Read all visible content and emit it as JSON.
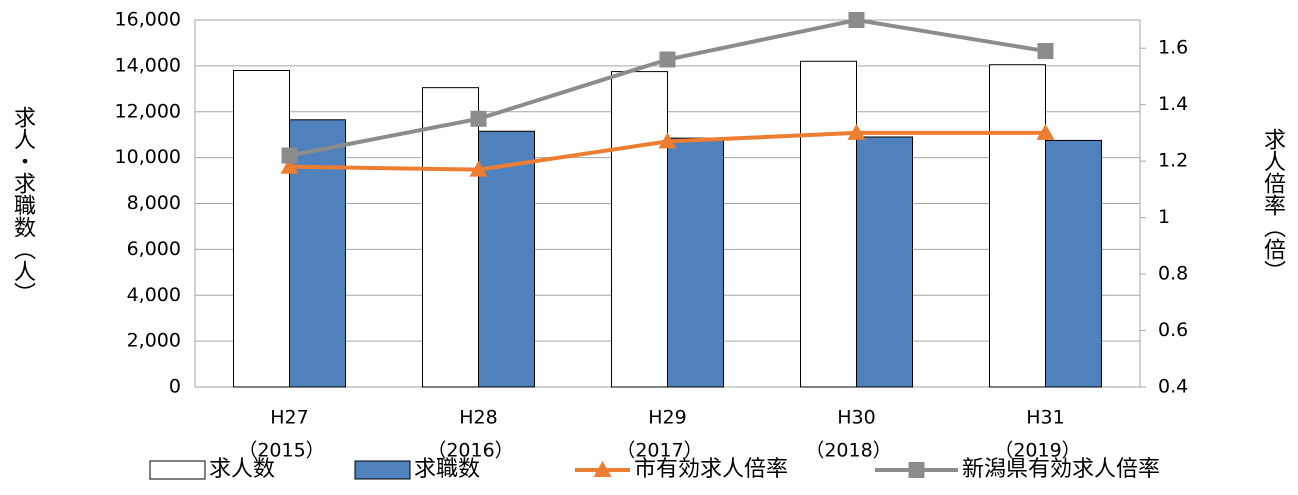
{
  "chart_data": {
    "type": "bar",
    "categories": [
      [
        "H27",
        "（2015）"
      ],
      [
        "H28",
        "（2016）"
      ],
      [
        "H29",
        "（2017）"
      ],
      [
        "H30",
        "（2018）"
      ],
      [
        "H31",
        "（2019）"
      ]
    ],
    "y_label": "求人・求職数（人）",
    "y2_label": "求人倍率（倍）",
    "series": [
      {
        "name": "求人数",
        "type": "bar",
        "color": "#ffffff",
        "values": [
          13800,
          13050,
          13750,
          14200,
          14050
        ]
      },
      {
        "name": "求職数",
        "type": "bar",
        "color": "#4f81bd",
        "values": [
          11650,
          11150,
          10850,
          10900,
          10750
        ]
      },
      {
        "name": "市有効求人倍率",
        "type": "line",
        "axis": "y2",
        "color": "#ed7d31",
        "marker": "triangle",
        "values": [
          1.18,
          1.17,
          1.27,
          1.3,
          1.3
        ]
      },
      {
        "name": "新潟県有効求人倍率",
        "type": "line",
        "axis": "y2",
        "color": "#8c8c8c",
        "marker": "square",
        "values": [
          1.22,
          1.35,
          1.56,
          1.7,
          1.59
        ]
      }
    ],
    "ylim": [
      0,
      16000
    ],
    "yticks": [
      0,
      {
        "value": 2000,
        "label": "2,000"
      },
      {
        "value": 4000,
        "label": "4,000"
      },
      {
        "value": 6000,
        "label": "6,000"
      },
      {
        "value": 8000,
        "label": "8,000"
      },
      {
        "value": 10000,
        "label": "10,000"
      },
      {
        "value": 12000,
        "label": "12,000"
      },
      {
        "value": 14000,
        "label": "14,000"
      },
      {
        "value": 16000,
        "label": "16,000"
      }
    ],
    "y2lim": [
      0.4,
      1.7
    ],
    "y2ticks": [
      0.4,
      0.6,
      0.8,
      1,
      1.2,
      1.4,
      1.6
    ],
    "grid": true,
    "legend": "bottom"
  }
}
